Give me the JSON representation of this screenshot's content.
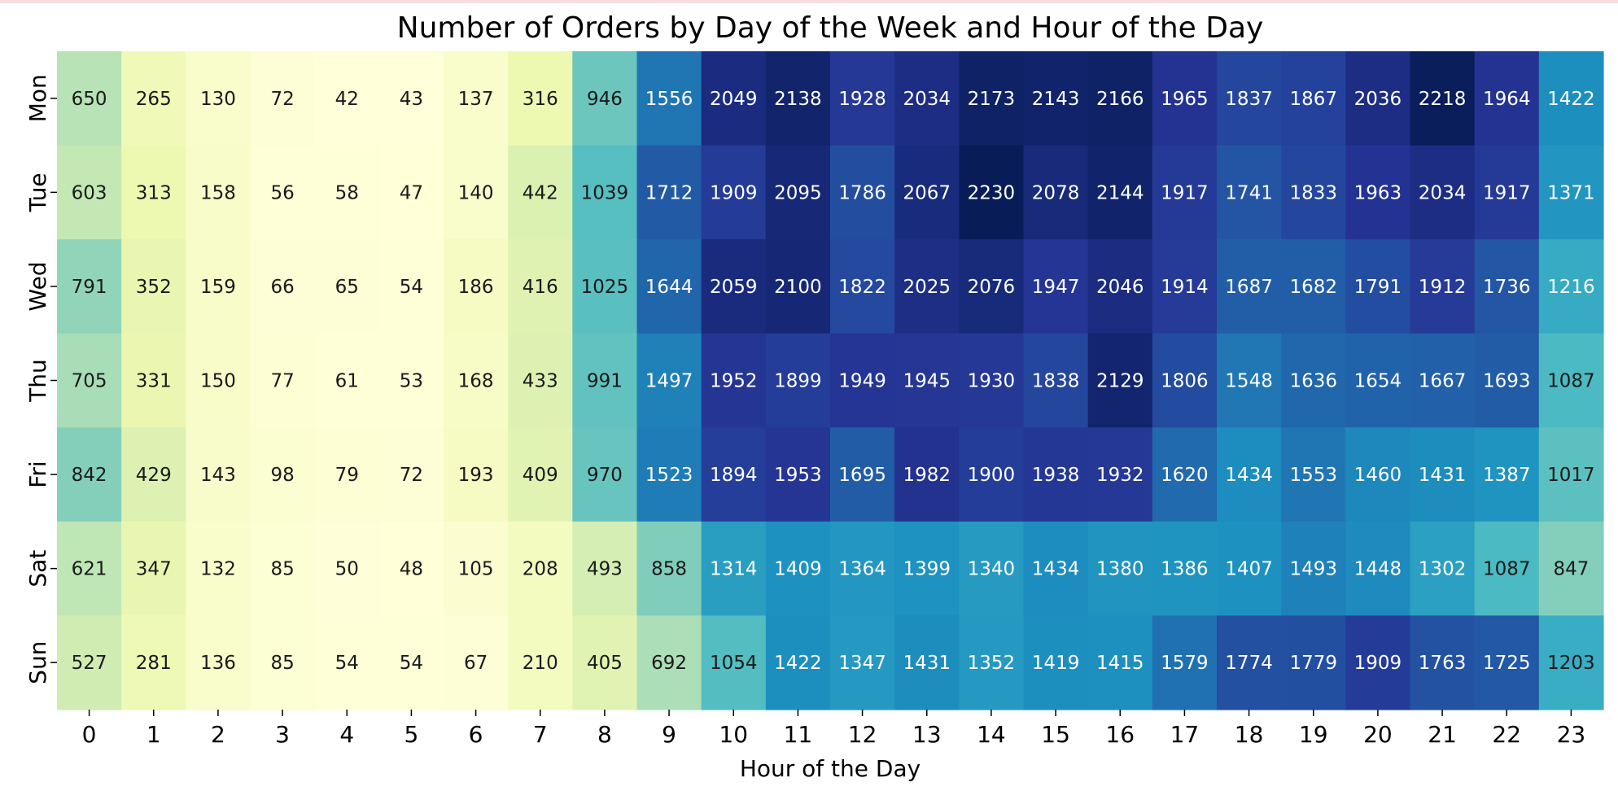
{
  "chart_data": {
    "type": "heatmap",
    "title": "Number of Orders by Day of the Week and Hour of the Day",
    "xlabel": "Hour of the Day",
    "ylabel": "",
    "x_categories": [
      "0",
      "1",
      "2",
      "3",
      "4",
      "5",
      "6",
      "7",
      "8",
      "9",
      "10",
      "11",
      "12",
      "13",
      "14",
      "15",
      "16",
      "17",
      "18",
      "19",
      "20",
      "21",
      "22",
      "23"
    ],
    "y_categories": [
      "Mon",
      "Tue",
      "Wed",
      "Thu",
      "Fri",
      "Sat",
      "Sun"
    ],
    "values": [
      [
        650,
        265,
        130,
        72,
        42,
        43,
        137,
        316,
        946,
        1556,
        2049,
        2138,
        1928,
        2034,
        2173,
        2143,
        2166,
        1965,
        1837,
        1867,
        2036,
        2218,
        1964,
        1422
      ],
      [
        603,
        313,
        158,
        56,
        58,
        47,
        140,
        442,
        1039,
        1712,
        1909,
        2095,
        1786,
        2067,
        2230,
        2078,
        2144,
        1917,
        1741,
        1833,
        1963,
        2034,
        1917,
        1371
      ],
      [
        791,
        352,
        159,
        66,
        65,
        54,
        186,
        416,
        1025,
        1644,
        2059,
        2100,
        1822,
        2025,
        2076,
        1947,
        2046,
        1914,
        1687,
        1682,
        1791,
        1912,
        1736,
        1216
      ],
      [
        705,
        331,
        150,
        77,
        61,
        53,
        168,
        433,
        991,
        1497,
        1952,
        1899,
        1949,
        1945,
        1930,
        1838,
        2129,
        1806,
        1548,
        1636,
        1654,
        1667,
        1693,
        1087
      ],
      [
        842,
        429,
        143,
        98,
        79,
        72,
        193,
        409,
        970,
        1523,
        1894,
        1953,
        1695,
        1982,
        1900,
        1938,
        1932,
        1620,
        1434,
        1553,
        1460,
        1431,
        1387,
        1017
      ],
      [
        621,
        347,
        132,
        85,
        50,
        48,
        105,
        208,
        493,
        858,
        1314,
        1409,
        1364,
        1399,
        1340,
        1434,
        1380,
        1386,
        1407,
        1493,
        1448,
        1302,
        1087,
        847
      ],
      [
        527,
        281,
        136,
        85,
        54,
        54,
        67,
        210,
        405,
        692,
        1054,
        1422,
        1347,
        1431,
        1352,
        1419,
        1415,
        1579,
        1774,
        1779,
        1909,
        1763,
        1725,
        1203
      ]
    ],
    "colormap": "YlGnBu",
    "annotated": true,
    "colorbar": false,
    "grid": false
  }
}
